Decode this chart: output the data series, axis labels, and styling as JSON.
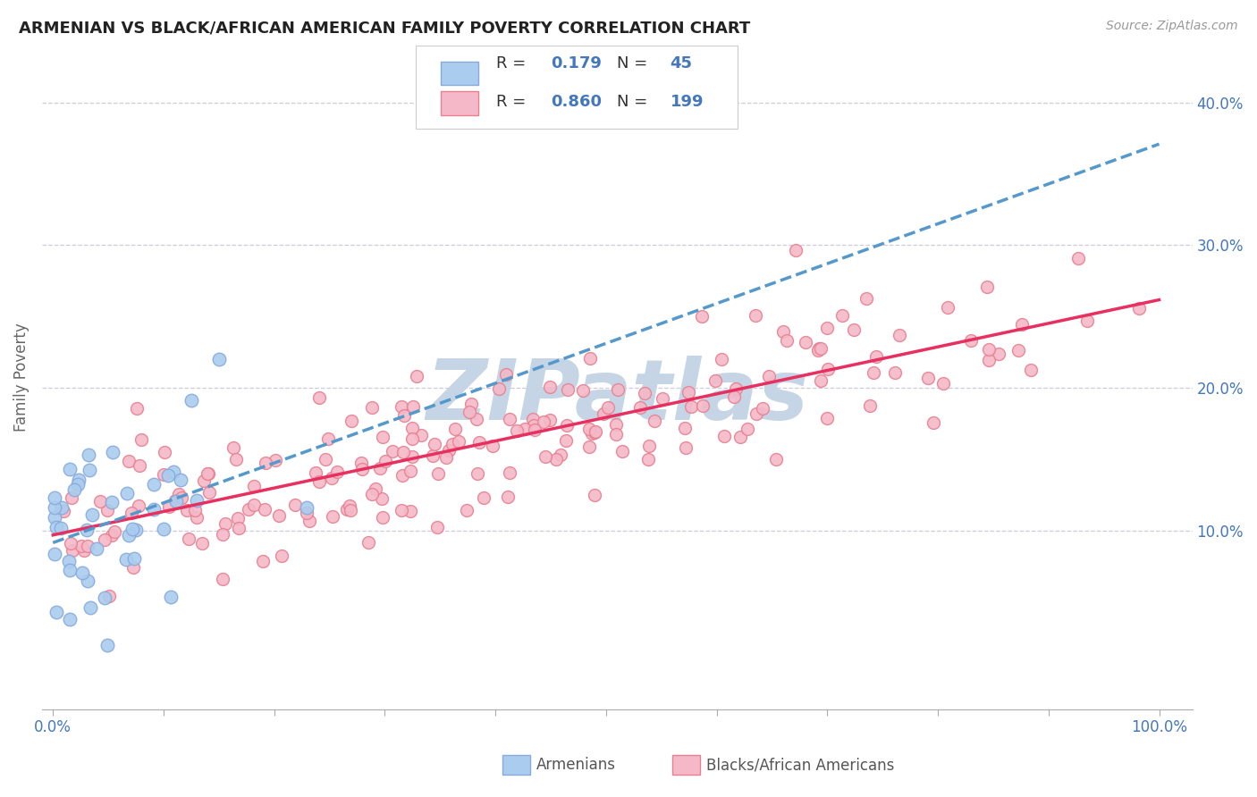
{
  "title": "ARMENIAN VS BLACK/AFRICAN AMERICAN FAMILY POVERTY CORRELATION CHART",
  "source": "Source: ZipAtlas.com",
  "ylabel": "Family Poverty",
  "ytick_labels": [
    "",
    "10.0%",
    "20.0%",
    "30.0%",
    "40.0%"
  ],
  "armenian_R": 0.179,
  "armenian_N": 45,
  "black_R": 0.86,
  "black_N": 199,
  "armenian_dot_face": "#aaccee",
  "armenian_dot_edge": "#88aadd",
  "black_dot_face": "#f4b8c8",
  "black_dot_edge": "#e88090",
  "trend_armenian_color": "#5599cc",
  "trend_black_color": "#e83060",
  "watermark_color": "#c5d5e5",
  "legend_label_armenian": "Armenians",
  "legend_label_black": "Blacks/African Americans",
  "background_color": "#ffffff",
  "grid_color": "#ccccdd",
  "tick_label_color": "#4477bb",
  "title_color": "#222222",
  "source_color": "#999999",
  "legend_text_color": "#4477bb"
}
